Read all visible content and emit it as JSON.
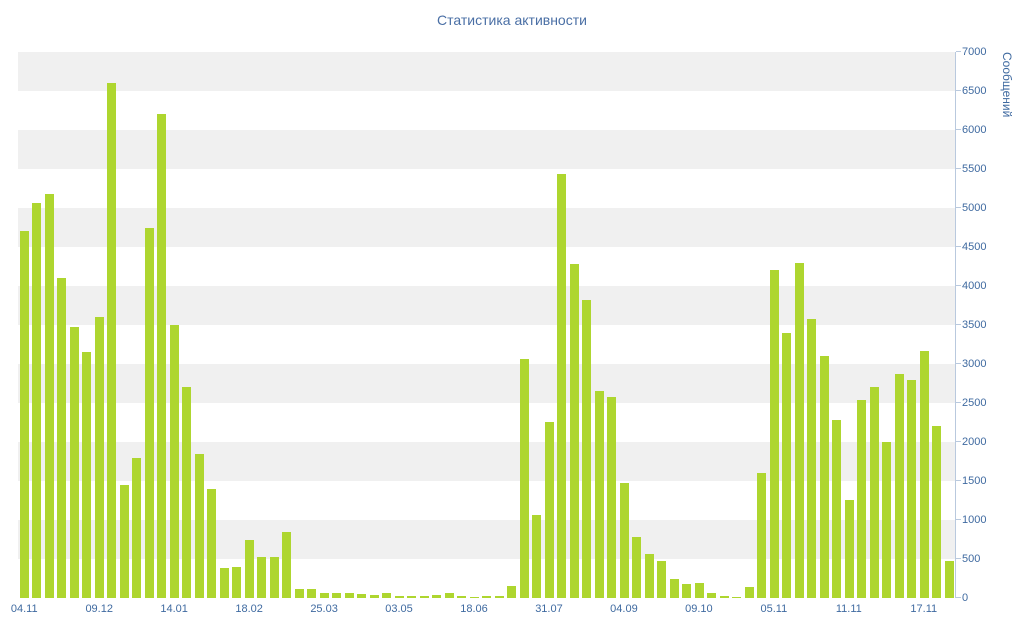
{
  "title": "Статистика активности",
  "colors": {
    "bar": "#aed62f",
    "stripe": "#f0f0f0",
    "axis_text": "#3f6aa0",
    "axis_line": "#b9c9de",
    "title_text": "#4a6fa5",
    "background": "#ffffff"
  },
  "chart_data": {
    "type": "bar",
    "title": "Статистика активности",
    "xlabel": "",
    "ylabel": "Сообщений",
    "ylim": [
      0,
      7000
    ],
    "y_tick_step": 500,
    "y_ticks": [
      0,
      500,
      1000,
      1500,
      2000,
      2500,
      3000,
      3500,
      4000,
      4500,
      5000,
      5500,
      6000,
      6500,
      7000
    ],
    "x_tick_labels": [
      "04.11",
      "09.12",
      "14.01",
      "18.02",
      "25.03",
      "03.05",
      "18.06",
      "31.07",
      "04.09",
      "09.10",
      "05.11",
      "11.11",
      "17.11"
    ],
    "x_tick_bar_indices": [
      0,
      6,
      12,
      18,
      24,
      30,
      36,
      42,
      48,
      54,
      60,
      66,
      72
    ],
    "values": [
      4700,
      5060,
      5180,
      4100,
      3470,
      3150,
      3600,
      6600,
      1450,
      1800,
      4750,
      6200,
      3500,
      2700,
      1850,
      1400,
      380,
      400,
      750,
      520,
      530,
      850,
      120,
      110,
      60,
      70,
      60,
      50,
      40,
      60,
      30,
      25,
      20,
      40,
      60,
      20,
      15,
      25,
      30,
      150,
      3070,
      1060,
      2260,
      5440,
      4280,
      3820,
      2650,
      2580,
      1480,
      780,
      560,
      470,
      250,
      180,
      190,
      60,
      30,
      10,
      140,
      1600,
      4200,
      3400,
      4300,
      3580,
      3100,
      2280,
      1260,
      2540,
      2700,
      2000,
      2870,
      2800,
      3170,
      2200,
      470
    ],
    "grid": "horizontal-bands",
    "legend": "none",
    "bar_color": "#aed62f"
  }
}
